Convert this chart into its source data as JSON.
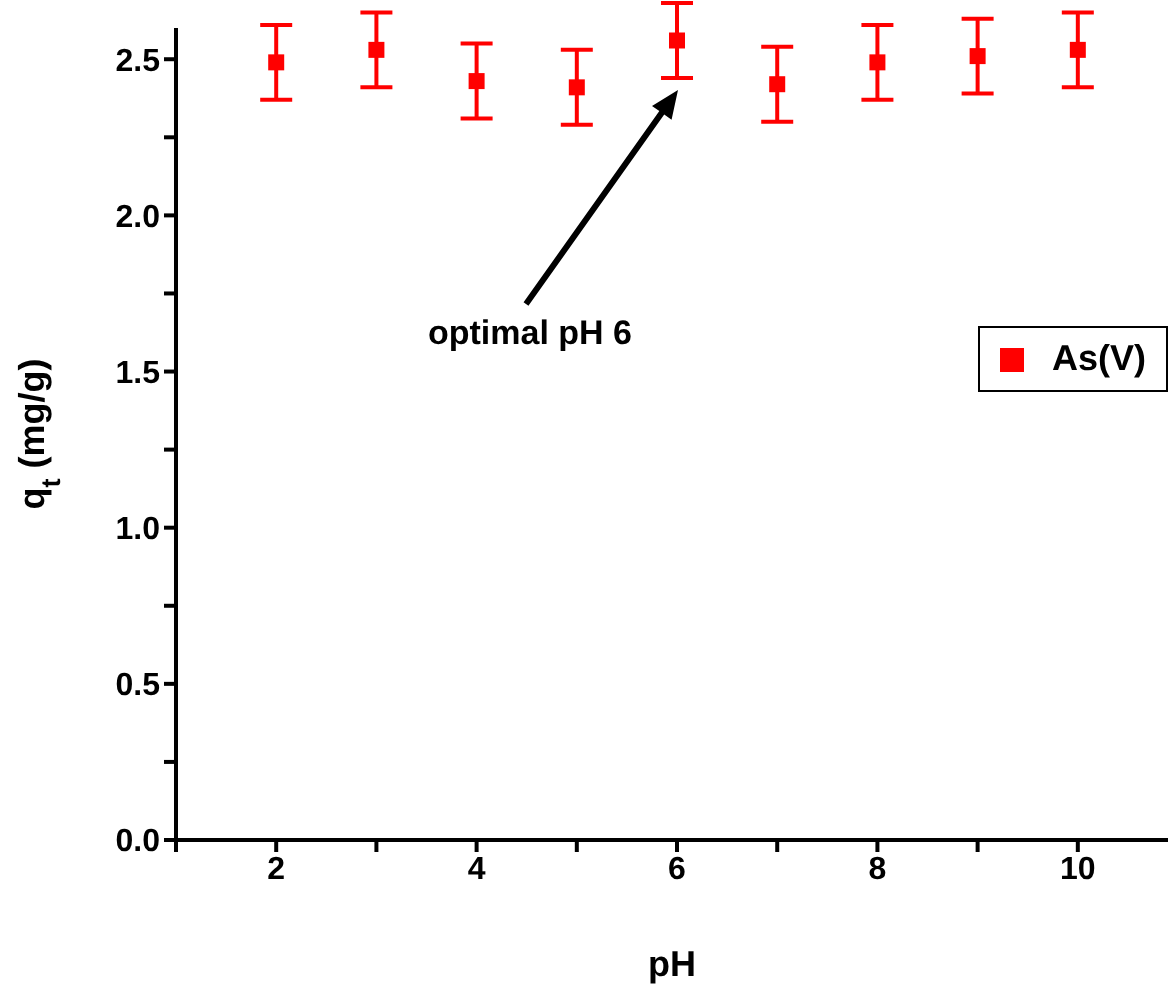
{
  "chart_data": {
    "type": "scatter",
    "xlabel": "pH",
    "ylabel": "q$_{t}$ (mg/g)",
    "x": [
      2,
      3,
      4,
      5,
      6,
      7,
      8,
      9,
      10
    ],
    "series": [
      {
        "name": "As(V)",
        "color": "#ff0000",
        "values": [
          2.49,
          2.53,
          2.43,
          2.41,
          2.56,
          2.42,
          2.49,
          2.51,
          2.53
        ],
        "errors": [
          0.12,
          0.12,
          0.12,
          0.12,
          0.12,
          0.12,
          0.12,
          0.12,
          0.12
        ]
      }
    ],
    "xlim": [
      1,
      10.9
    ],
    "xticks": [
      {
        "value": 1,
        "label": null
      },
      2,
      {
        "value": 3,
        "label": null
      },
      4,
      {
        "value": 5,
        "label": null
      },
      6,
      {
        "value": 7,
        "label": null
      },
      8,
      {
        "value": 9,
        "label": null
      },
      10
    ],
    "ylim": [
      0,
      2.6
    ],
    "yticks": [
      {
        "value": 0,
        "label": "0.0"
      },
      {
        "value": 0.25,
        "label": null
      },
      {
        "value": 0.5,
        "label": "0.5"
      },
      {
        "value": 0.75,
        "label": null
      },
      {
        "value": 1,
        "label": "1.0"
      },
      {
        "value": 1.25,
        "label": null
      },
      {
        "value": 1.5,
        "label": "1.5"
      },
      {
        "value": 1.75,
        "label": null
      },
      {
        "value": 2,
        "label": "2.0"
      },
      {
        "value": 2.25,
        "label": null
      },
      {
        "value": 2.5,
        "label": "2.5"
      }
    ],
    "annotations": [
      "optimal pH 6"
    ],
    "marker": "square",
    "legend": "right",
    "grid": false
  }
}
